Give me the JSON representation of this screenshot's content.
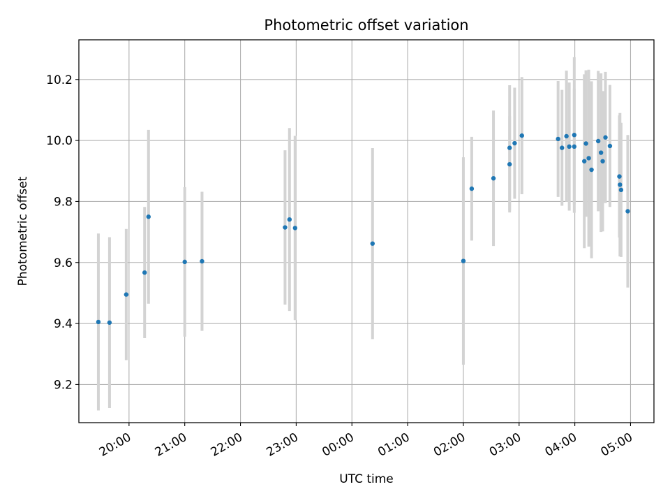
{
  "chart_data": {
    "type": "scatter",
    "title": "Photometric offset variation",
    "xlabel": "UTC time",
    "ylabel": "Photometric offset",
    "x_unit": "UTC time (hours, continuing past midnight)",
    "xlim": [
      19.1,
      29.42
    ],
    "ylim": [
      9.075,
      10.33
    ],
    "x_ticks": [
      {
        "value": 20,
        "label": "20:00"
      },
      {
        "value": 21,
        "label": "21:00"
      },
      {
        "value": 22,
        "label": "22:00"
      },
      {
        "value": 23,
        "label": "23:00"
      },
      {
        "value": 24,
        "label": "00:00"
      },
      {
        "value": 25,
        "label": "01:00"
      },
      {
        "value": 26,
        "label": "02:00"
      },
      {
        "value": 27,
        "label": "03:00"
      },
      {
        "value": 28,
        "label": "04:00"
      },
      {
        "value": 29,
        "label": "05:00"
      }
    ],
    "y_ticks": [
      {
        "value": 9.2,
        "label": "9.2"
      },
      {
        "value": 9.4,
        "label": "9.4"
      },
      {
        "value": 9.6,
        "label": "9.6"
      },
      {
        "value": 9.8,
        "label": "9.8"
      },
      {
        "value": 10.0,
        "label": "10.0"
      },
      {
        "value": 10.2,
        "label": "10.2"
      }
    ],
    "grid": true,
    "colors": {
      "marker": "#1f77b4",
      "errorbar": "#d3d3d3",
      "grid": "#b0b0b0"
    },
    "points": [
      {
        "x": 19.45,
        "y": 9.405,
        "err": 0.29
      },
      {
        "x": 19.65,
        "y": 9.403,
        "err": 0.28
      },
      {
        "x": 19.95,
        "y": 9.495,
        "err": 0.215
      },
      {
        "x": 20.28,
        "y": 9.567,
        "err": 0.215
      },
      {
        "x": 20.35,
        "y": 9.75,
        "err": 0.285
      },
      {
        "x": 21.0,
        "y": 9.602,
        "err": 0.245
      },
      {
        "x": 21.31,
        "y": 9.604,
        "err": 0.228
      },
      {
        "x": 22.8,
        "y": 9.715,
        "err": 0.253
      },
      {
        "x": 22.88,
        "y": 9.741,
        "err": 0.3
      },
      {
        "x": 22.98,
        "y": 9.713,
        "err": 0.302
      },
      {
        "x": 24.37,
        "y": 9.662,
        "err": 0.313
      },
      {
        "x": 26.0,
        "y": 9.605,
        "err": 0.34
      },
      {
        "x": 26.15,
        "y": 9.842,
        "err": 0.17
      },
      {
        "x": 26.54,
        "y": 9.876,
        "err": 0.222
      },
      {
        "x": 26.83,
        "y": 9.922,
        "err": 0.158
      },
      {
        "x": 26.83,
        "y": 9.976,
        "err": 0.205
      },
      {
        "x": 26.92,
        "y": 9.991,
        "err": 0.182
      },
      {
        "x": 27.05,
        "y": 10.016,
        "err": 0.192
      },
      {
        "x": 27.7,
        "y": 10.005,
        "err": 0.19
      },
      {
        "x": 27.77,
        "y": 9.976,
        "err": 0.19
      },
      {
        "x": 27.85,
        "y": 10.014,
        "err": 0.215
      },
      {
        "x": 27.9,
        "y": 9.98,
        "err": 0.21
      },
      {
        "x": 27.99,
        "y": 9.98,
        "err": 0.19
      },
      {
        "x": 27.99,
        "y": 10.018,
        "err": 0.255
      },
      {
        "x": 28.17,
        "y": 9.932,
        "err": 0.285
      },
      {
        "x": 28.2,
        "y": 9.99,
        "err": 0.24
      },
      {
        "x": 28.25,
        "y": 9.942,
        "err": 0.29
      },
      {
        "x": 28.3,
        "y": 9.904,
        "err": 0.29
      },
      {
        "x": 28.42,
        "y": 9.998,
        "err": 0.23
      },
      {
        "x": 28.47,
        "y": 9.96,
        "err": 0.26
      },
      {
        "x": 28.5,
        "y": 9.932,
        "err": 0.23
      },
      {
        "x": 28.55,
        "y": 10.01,
        "err": 0.215
      },
      {
        "x": 28.63,
        "y": 9.982,
        "err": 0.2
      },
      {
        "x": 28.8,
        "y": 9.882,
        "err": 0.2
      },
      {
        "x": 28.81,
        "y": 9.855,
        "err": 0.235
      },
      {
        "x": 28.83,
        "y": 9.838,
        "err": 0.22
      },
      {
        "x": 28.95,
        "y": 9.768,
        "err": 0.25
      }
    ]
  }
}
